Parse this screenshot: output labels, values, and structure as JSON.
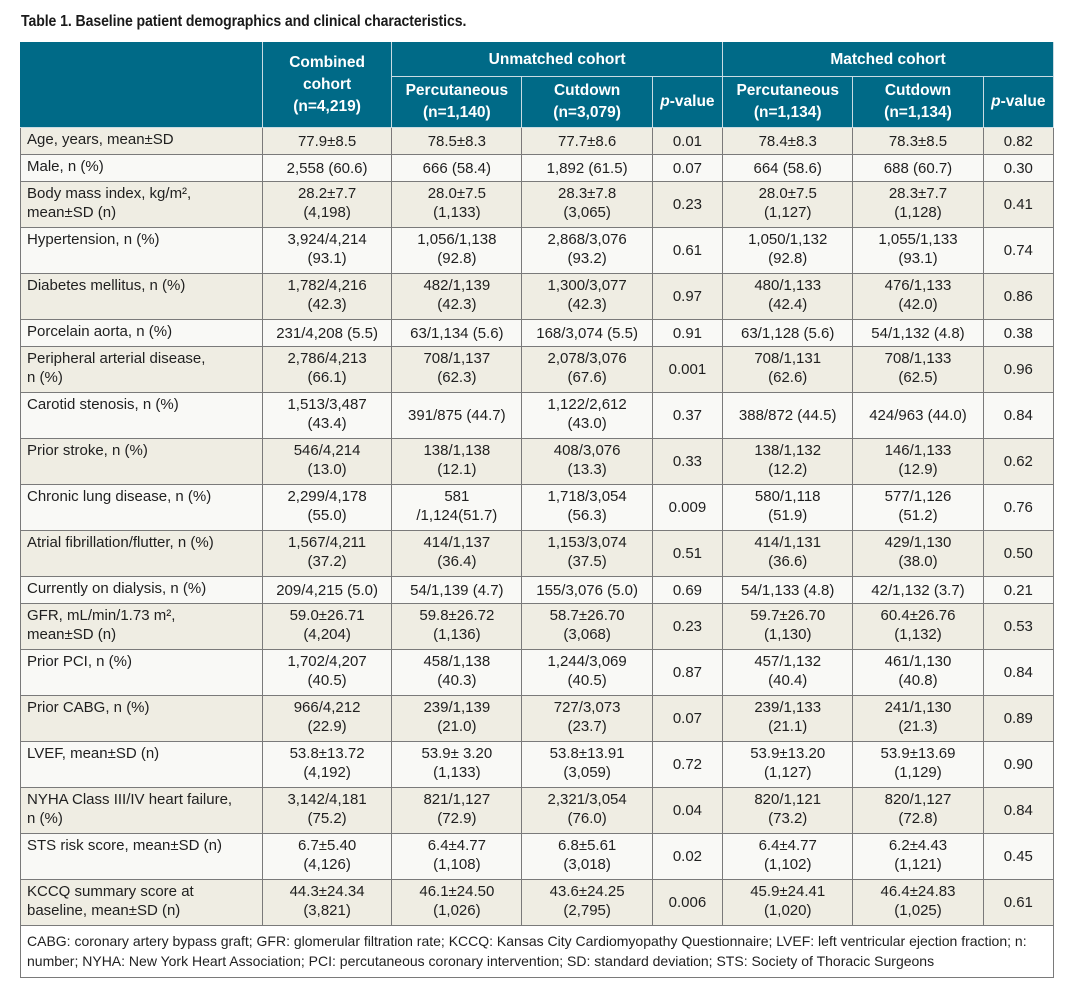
{
  "caption": "Table 1. Baseline patient demographics and clinical characteristics.",
  "header": {
    "combined": "Combined cohort (n=4,219)",
    "unmatched_group": "Unmatched cohort",
    "matched_group": "Matched cohort",
    "unmatched_cols": {
      "percutaneous": "Percutaneous (n=1,140)",
      "cutdown": "Cutdown (n=3,079)",
      "p_prefix": "p",
      "p_suffix": "-value"
    },
    "matched_cols": {
      "percutaneous": "Percutaneous (n=1,134)",
      "cutdown": "Cutdown (n=1,134)",
      "p_prefix": "p",
      "p_suffix": "-value"
    }
  },
  "rows": [
    {
      "label": "Age, years, mean±SD",
      "combined": "77.9±8.5",
      "u_perc": "78.5±8.3",
      "u_cut": "77.7±8.6",
      "u_p": "0.01",
      "m_perc": "78.4±8.3",
      "m_cut": "78.3±8.5",
      "m_p": "0.82"
    },
    {
      "label": "Male, n (%)",
      "combined": "2,558 (60.6)",
      "u_perc": "666 (58.4)",
      "u_cut": "1,892 (61.5)",
      "u_p": "0.07",
      "m_perc": "664 (58.6)",
      "m_cut": "688 (60.7)",
      "m_p": "0.30"
    },
    {
      "label": "Body mass index, kg/m², mean±SD (n)",
      "combined": "28.2±7.7 (4,198)",
      "u_perc": "28.0±7.5 (1,133)",
      "u_cut": "28.3±7.8 (3,065)",
      "u_p": "0.23",
      "m_perc": "28.0±7.5 (1,127)",
      "m_cut": "28.3±7.7 (1,128)",
      "m_p": "0.41"
    },
    {
      "label": "Hypertension, n (%)",
      "combined": "3,924/4,214 (93.1)",
      "u_perc": "1,056/1,138 (92.8)",
      "u_cut": "2,868/3,076 (93.2)",
      "u_p": "0.61",
      "m_perc": "1,050/1,132 (92.8)",
      "m_cut": "1,055/1,133 (93.1)",
      "m_p": "0.74"
    },
    {
      "label": "Diabetes mellitus, n (%)",
      "combined": "1,782/4,216 (42.3)",
      "u_perc": "482/1,139 (42.3)",
      "u_cut": "1,300/3,077 (42.3)",
      "u_p": "0.97",
      "m_perc": "480/1,133 (42.4)",
      "m_cut": "476/1,133 (42.0)",
      "m_p": "0.86"
    },
    {
      "label": "Porcelain aorta, n (%)",
      "combined": "231/4,208 (5.5)",
      "u_perc": "63/1,134 (5.6)",
      "u_cut": "168/3,074 (5.5)",
      "u_p": "0.91",
      "m_perc": "63/1,128 (5.6)",
      "m_cut": "54/1,132 (4.8)",
      "m_p": "0.38"
    },
    {
      "label": "Peripheral arterial disease, n (%)",
      "combined": "2,786/4,213 (66.1)",
      "u_perc": "708/1,137 (62.3)",
      "u_cut": "2,078/3,076 (67.6)",
      "u_p": "0.001",
      "m_perc": "708/1,131 (62.6)",
      "m_cut": "708/1,133 (62.5)",
      "m_p": "0.96"
    },
    {
      "label": "Carotid stenosis, n (%)",
      "combined": "1,513/3,487 (43.4)",
      "u_perc": "391/875 (44.7)",
      "u_cut": "1,122/2,612 (43.0)",
      "u_p": "0.37",
      "m_perc": "388/872 (44.5)",
      "m_cut": "424/963 (44.0)",
      "m_p": "0.84"
    },
    {
      "label": "Prior stroke, n (%)",
      "combined": "546/4,214 (13.0)",
      "u_perc": "138/1,138 (12.1)",
      "u_cut": "408/3,076 (13.3)",
      "u_p": "0.33",
      "m_perc": "138/1,132 (12.2)",
      "m_cut": "146/1,133 (12.9)",
      "m_p": "0.62"
    },
    {
      "label": "Chronic lung disease, n (%)",
      "combined": "2,299/4,178 (55.0)",
      "u_perc": "581 /1,124(51.7)",
      "u_cut": "1,718/3,054 (56.3)",
      "u_p": "0.009",
      "m_perc": "580/1,118 (51.9)",
      "m_cut": "577/1,126 (51.2)",
      "m_p": "0.76"
    },
    {
      "label": "Atrial fibrillation/flutter, n (%)",
      "combined": "1,567/4,211 (37.2)",
      "u_perc": "414/1,137 (36.4)",
      "u_cut": "1,153/3,074 (37.5)",
      "u_p": "0.51",
      "m_perc": "414/1,131 (36.6)",
      "m_cut": "429/1,130 (38.0)",
      "m_p": "0.50"
    },
    {
      "label": "Currently on dialysis, n (%)",
      "combined": "209/4,215 (5.0)",
      "u_perc": "54/1,139 (4.7)",
      "u_cut": "155/3,076 (5.0)",
      "u_p": "0.69",
      "m_perc": "54/1,133 (4.8)",
      "m_cut": "42/1,132 (3.7)",
      "m_p": "0.21"
    },
    {
      "label": "GFR, mL/min/1.73 m², mean±SD (n)",
      "combined": "59.0±26.71 (4,204)",
      "u_perc": "59.8±26.72 (1,136)",
      "u_cut": "58.7±26.70 (3,068)",
      "u_p": "0.23",
      "m_perc": "59.7±26.70 (1,130)",
      "m_cut": "60.4±26.76 (1,132)",
      "m_p": "0.53"
    },
    {
      "label": "Prior PCI, n (%)",
      "combined": "1,702/4,207 (40.5)",
      "u_perc": "458/1,138 (40.3)",
      "u_cut": "1,244/3,069 (40.5)",
      "u_p": "0.87",
      "m_perc": "457/1,132 (40.4)",
      "m_cut": "461/1,130 (40.8)",
      "m_p": "0.84"
    },
    {
      "label": "Prior CABG, n (%)",
      "combined": "966/4,212 (22.9)",
      "u_perc": "239/1,139 (21.0)",
      "u_cut": "727/3,073 (23.7)",
      "u_p": "0.07",
      "m_perc": "239/1,133 (21.1)",
      "m_cut": "241/1,130 (21.3)",
      "m_p": "0.89"
    },
    {
      "label": "LVEF, mean±SD (n)",
      "combined": "53.8±13.72 (4,192)",
      "u_perc": "53.9± 3.20 (1,133)",
      "u_cut": "53.8±13.91 (3,059)",
      "u_p": "0.72",
      "m_perc": "53.9±13.20 (1,127)",
      "m_cut": "53.9±13.69 (1,129)",
      "m_p": "0.90"
    },
    {
      "label": "NYHA Class III/IV heart failure, n (%)",
      "combined": "3,142/4,181 (75.2)",
      "u_perc": "821/1,127 (72.9)",
      "u_cut": "2,321/3,054 (76.0)",
      "u_p": "0.04",
      "m_perc": "820/1,121 (73.2)",
      "m_cut": "820/1,127 (72.8)",
      "m_p": "0.84"
    },
    {
      "label": "STS risk score, mean±SD (n)",
      "combined": "6.7±5.40 (4,126)",
      "u_perc": "6.4±4.77 (1,108)",
      "u_cut": "6.8±5.61 (3,018)",
      "u_p": "0.02",
      "m_perc": "6.4±4.77 (1,102)",
      "m_cut": "6.2±4.43 (1,121)",
      "m_p": "0.45"
    },
    {
      "label": "KCCQ summary score at baseline, mean±SD (n)",
      "combined": "44.3±24.34 (3,821)",
      "u_perc": "46.1±24.50 (1,026)",
      "u_cut": "43.6±24.25 (2,795)",
      "u_p": "0.006",
      "m_perc": "45.9±24.41 (1,020)",
      "m_cut": "46.4±24.83 (1,025)",
      "m_p": "0.61"
    }
  ],
  "rows_lines": [
    {
      "label": [
        "Age, years, mean±SD"
      ],
      "combined": [
        "77.9±8.5"
      ],
      "u_perc": [
        "78.5±8.3"
      ],
      "u_cut": [
        "77.7±8.6"
      ],
      "m_perc": [
        "78.4±8.3"
      ],
      "m_cut": [
        "78.3±8.5"
      ]
    },
    {
      "label": [
        "Male, n (%)"
      ],
      "combined": [
        "2,558 (60.6)"
      ],
      "u_perc": [
        "666 (58.4)"
      ],
      "u_cut": [
        "1,892 (61.5)"
      ],
      "m_perc": [
        "664 (58.6)"
      ],
      "m_cut": [
        "688 (60.7)"
      ]
    },
    {
      "label": [
        "Body mass index, kg/m², ",
        "mean±SD (n)"
      ],
      "combined": [
        "28.2±7.7",
        "(4,198)"
      ],
      "u_perc": [
        "28.0±7.5",
        "(1,133)"
      ],
      "u_cut": [
        "28.3±7.8",
        "(3,065)"
      ],
      "m_perc": [
        "28.0±7.5",
        "(1,127)"
      ],
      "m_cut": [
        "28.3±7.7",
        "(1,128)"
      ]
    },
    {
      "label": [
        "Hypertension, n (%)"
      ],
      "combined": [
        "3,924/4,214",
        "(93.1)"
      ],
      "u_perc": [
        "1,056/1,138",
        "(92.8)"
      ],
      "u_cut": [
        "2,868/3,076",
        "(93.2)"
      ],
      "m_perc": [
        "1,050/1,132",
        "(92.8)"
      ],
      "m_cut": [
        "1,055/1,133",
        "(93.1)"
      ]
    },
    {
      "label": [
        "Diabetes mellitus, n (%)"
      ],
      "combined": [
        "1,782/4,216",
        "(42.3)"
      ],
      "u_perc": [
        "482/1,139",
        "(42.3)"
      ],
      "u_cut": [
        "1,300/3,077",
        "(42.3)"
      ],
      "m_perc": [
        "480/1,133",
        "(42.4)"
      ],
      "m_cut": [
        "476/1,133",
        "(42.0)"
      ]
    },
    {
      "label": [
        "Porcelain aorta, n (%)"
      ],
      "combined": [
        "231/4,208 (5.5)"
      ],
      "u_perc": [
        "63/1,134 (5.6)"
      ],
      "u_cut": [
        "168/3,074 (5.5)"
      ],
      "m_perc": [
        "63/1,128 (5.6)"
      ],
      "m_cut": [
        "54/1,132 (4.8)"
      ]
    },
    {
      "label": [
        "Peripheral arterial disease,",
        "n (%)"
      ],
      "combined": [
        "2,786/4,213",
        "(66.1)"
      ],
      "u_perc": [
        "708/1,137",
        "(62.3)"
      ],
      "u_cut": [
        "2,078/3,076",
        "(67.6)"
      ],
      "m_perc": [
        "708/1,131",
        "(62.6)"
      ],
      "m_cut": [
        "708/1,133",
        "(62.5)"
      ]
    },
    {
      "label": [
        "Carotid stenosis, n (%)"
      ],
      "combined": [
        "1,513/3,487",
        "(43.4)"
      ],
      "u_perc": [
        "391/875 (44.7)"
      ],
      "u_cut": [
        "1,122/2,612",
        "(43.0)"
      ],
      "m_perc": [
        "388/872 (44.5)"
      ],
      "m_cut": [
        "424/963 (44.0)"
      ]
    },
    {
      "label": [
        "Prior stroke, n (%)"
      ],
      "combined": [
        "546/4,214",
        "(13.0)"
      ],
      "u_perc": [
        "138/1,138",
        "(12.1)"
      ],
      "u_cut": [
        "408/3,076",
        "(13.3)"
      ],
      "m_perc": [
        "138/1,132",
        "(12.2)"
      ],
      "m_cut": [
        "146/1,133",
        "(12.9)"
      ]
    },
    {
      "label": [
        "Chronic lung disease, n (%)"
      ],
      "combined": [
        "2,299/4,178",
        "(55.0)"
      ],
      "u_perc": [
        "581",
        "/1,124(51.7)"
      ],
      "u_cut": [
        "1,718/3,054",
        "(56.3)"
      ],
      "m_perc": [
        "580/1,118",
        "(51.9)"
      ],
      "m_cut": [
        "577/1,126",
        "(51.2)"
      ]
    },
    {
      "label": [
        "Atrial fibrillation/flutter, n (%)"
      ],
      "combined": [
        "1,567/4,211",
        "(37.2)"
      ],
      "u_perc": [
        "414/1,137",
        "(36.4)"
      ],
      "u_cut": [
        "1,153/3,074",
        "(37.5)"
      ],
      "m_perc": [
        "414/1,131",
        "(36.6)"
      ],
      "m_cut": [
        "429/1,130",
        "(38.0)"
      ]
    },
    {
      "label": [
        "Currently on dialysis, n (%)"
      ],
      "combined": [
        "209/4,215 (5.0)"
      ],
      "u_perc": [
        "54/1,139 (4.7)"
      ],
      "u_cut": [
        "155/3,076 (5.0)"
      ],
      "m_perc": [
        "54/1,133 (4.8)"
      ],
      "m_cut": [
        "42/1,132 (3.7)"
      ]
    },
    {
      "label": [
        "GFR, mL/min/1.73 m², ",
        "mean±SD (n)"
      ],
      "combined": [
        "59.0±26.71",
        "(4,204)"
      ],
      "u_perc": [
        "59.8±26.72",
        "(1,136)"
      ],
      "u_cut": [
        "58.7±26.70",
        "(3,068)"
      ],
      "m_perc": [
        "59.7±26.70",
        "(1,130)"
      ],
      "m_cut": [
        "60.4±26.76",
        "(1,132)"
      ]
    },
    {
      "label": [
        "Prior PCI, n (%)"
      ],
      "combined": [
        "1,702/4,207",
        "(40.5)"
      ],
      "u_perc": [
        "458/1,138",
        "(40.3)"
      ],
      "u_cut": [
        "1,244/3,069",
        "(40.5)"
      ],
      "m_perc": [
        "457/1,132",
        "(40.4)"
      ],
      "m_cut": [
        "461/1,130",
        "(40.8)"
      ]
    },
    {
      "label": [
        "Prior CABG, n (%)"
      ],
      "combined": [
        "966/4,212",
        "(22.9)"
      ],
      "u_perc": [
        "239/1,139",
        "(21.0)"
      ],
      "u_cut": [
        "727/3,073",
        "(23.7)"
      ],
      "m_perc": [
        "239/1,133",
        "(21.1)"
      ],
      "m_cut": [
        "241/1,130",
        "(21.3)"
      ]
    },
    {
      "label": [
        "LVEF, mean±SD (n)"
      ],
      "combined": [
        "53.8±13.72",
        "(4,192)"
      ],
      "u_perc": [
        "53.9± 3.20",
        "(1,133)"
      ],
      "u_cut": [
        "53.8±13.91",
        "(3,059)"
      ],
      "m_perc": [
        "53.9±13.20",
        "(1,127)"
      ],
      "m_cut": [
        "53.9±13.69",
        "(1,129)"
      ]
    },
    {
      "label": [
        "NYHA Class III/IV heart failure,",
        "n (%)"
      ],
      "combined": [
        "3,142/4,181",
        "(75.2)"
      ],
      "u_perc": [
        "821/1,127",
        "(72.9)"
      ],
      "u_cut": [
        "2,321/3,054",
        "(76.0)"
      ],
      "m_perc": [
        "820/1,121",
        "(73.2)"
      ],
      "m_cut": [
        "820/1,127",
        "(72.8)"
      ]
    },
    {
      "label": [
        "STS risk score, mean±SD (n)"
      ],
      "combined": [
        "6.7±5.40",
        "(4,126)"
      ],
      "u_perc": [
        "6.4±4.77",
        "(1,108)"
      ],
      "u_cut": [
        "6.8±5.61",
        "(3,018)"
      ],
      "m_perc": [
        "6.4±4.77",
        "(1,102)"
      ],
      "m_cut": [
        "6.2±4.43",
        "(1,121)"
      ]
    },
    {
      "label": [
        "KCCQ summary score at",
        "baseline, mean±SD (n)"
      ],
      "combined": [
        "44.3±24.34",
        "(3,821)"
      ],
      "u_perc": [
        "46.1±24.50",
        "(1,026)"
      ],
      "u_cut": [
        "43.6±24.25",
        "(2,795)"
      ],
      "m_perc": [
        "45.9±24.41",
        "(1,020)"
      ],
      "m_cut": [
        "46.4±24.83",
        "(1,025)"
      ]
    }
  ],
  "footnote": "CABG: coronary artery bypass graft; GFR: glomerular filtration rate; KCCQ: Kansas City Cardiomyopathy Questionnaire; LVEF: left ventricular ejection fraction; n: number; NYHA: New York Heart Association; PCI: percutaneous coronary intervention; SD: standard deviation; STS: Society of Thoracic Surgeons",
  "colors": {
    "header_bg": "#006a87",
    "header_text": "#ffffff",
    "row_shade": "#efede3",
    "row_plain": "#f9f9f6"
  }
}
